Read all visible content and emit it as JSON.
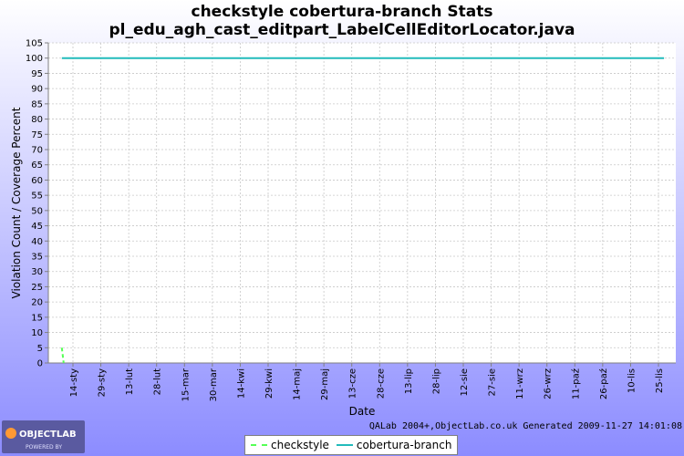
{
  "title_line1": "checkstyle cobertura-branch  Stats",
  "title_line2": "pl_edu_agh_cast_editpart_LabelCellEditorLocator.java",
  "generated_text": "QALab 2004+,ObjectLab.co.uk Generated 2009-11-27 14:01:08",
  "logo": {
    "text": "OBJECTLAB",
    "subtext": "POWERED BY"
  },
  "colors": {
    "background": "#8c8cff",
    "plot_bg": "#ffffff",
    "grid": "#c8c8c8",
    "checkstyle": "#55ff55",
    "cobertura": "#22bbbb"
  },
  "chart_data": {
    "type": "line",
    "xlabel": "Date",
    "ylabel": "Violation Count / Coverage Percent",
    "ylim": [
      0,
      105
    ],
    "y_ticks": [
      0,
      5,
      10,
      15,
      20,
      25,
      30,
      35,
      40,
      45,
      50,
      55,
      60,
      65,
      70,
      75,
      80,
      85,
      90,
      95,
      100,
      105
    ],
    "x_tick_labels": [
      "14-sty",
      "29-sty",
      "13-lut",
      "28-lut",
      "15-mar",
      "30-mar",
      "14-kwi",
      "29-kwi",
      "14-maj",
      "29-maj",
      "13-cze",
      "28-cze",
      "13-lip",
      "28-lip",
      "12-sie",
      "27-sie",
      "11-wrz",
      "26-wrz",
      "11-paź",
      "26-paź",
      "10-lis",
      "25-lis"
    ],
    "grid": true,
    "legend_position": "bottom",
    "series": [
      {
        "name": "checkstyle",
        "style": "dashed",
        "x": [
          "08-sty",
          "09-sty"
        ],
        "values": [
          5,
          0
        ]
      },
      {
        "name": "cobertura-branch",
        "style": "solid",
        "x": [
          "08-sty",
          "28-lis"
        ],
        "values": [
          100,
          100
        ]
      }
    ]
  }
}
